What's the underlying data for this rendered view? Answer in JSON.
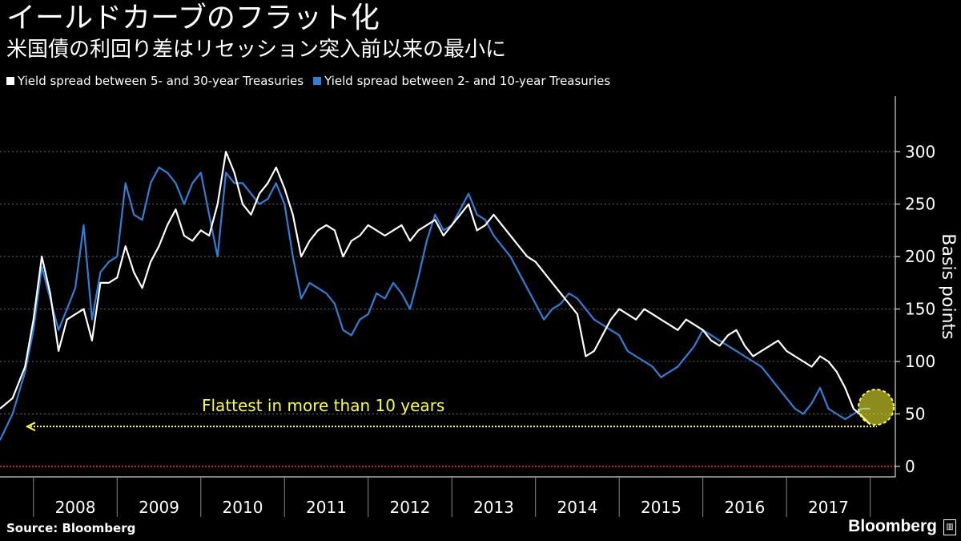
{
  "header": {
    "title": "イールドカーブのフラット化",
    "subtitle": "米国債の利回り差はリセッション突入前以来の最小に"
  },
  "legend": [
    {
      "label": "Yield spread between 5- and 30-year Treasuries",
      "color": "#ffffff"
    },
    {
      "label": "Yield spread between 2- and 10-year Treasuries",
      "color": "#2f7fd8"
    }
  ],
  "footer": {
    "source": "Source:  Bloomberg",
    "brand": "Bloomberg"
  },
  "colors": {
    "background": "#000000",
    "series_white": "#ffffff",
    "series_blue": "#2f7fd8",
    "annotation": "#ffff33",
    "zero_line": "#cc2222",
    "grid": "#666666"
  },
  "chart_data": {
    "type": "line",
    "title": "イールドカーブのフラット化",
    "subtitle": "米国債の利回り差はリセッション突入前以来の最小に",
    "xlabel": "",
    "ylabel": "Basis points",
    "x_tick_labels": [
      "2008",
      "2009",
      "2010",
      "2011",
      "2012",
      "2013",
      "2014",
      "2015",
      "2016",
      "2017"
    ],
    "y_ticks": [
      0,
      50,
      100,
      150,
      200,
      250,
      300
    ],
    "xlim": [
      2007.6,
      2018.3
    ],
    "ylim": [
      -10,
      330
    ],
    "grid": "horizontal dotted",
    "legend_position": "top-left",
    "annotation": {
      "text": "Flattest in more than 10 years",
      "y": 38
    },
    "reference_line": {
      "y": 0
    },
    "series": [
      {
        "name": "Yield spread between 5- and 30-year Treasuries",
        "x": [
          2007.6,
          2007.75,
          2007.9,
          2008.0,
          2008.1,
          2008.2,
          2008.3,
          2008.4,
          2008.5,
          2008.6,
          2008.7,
          2008.8,
          2008.9,
          2009.0,
          2009.1,
          2009.2,
          2009.3,
          2009.4,
          2009.5,
          2009.6,
          2009.7,
          2009.8,
          2009.9,
          2010.0,
          2010.1,
          2010.2,
          2010.3,
          2010.4,
          2010.5,
          2010.6,
          2010.7,
          2010.8,
          2010.9,
          2011.0,
          2011.1,
          2011.2,
          2011.3,
          2011.4,
          2011.5,
          2011.6,
          2011.7,
          2011.8,
          2011.9,
          2012.0,
          2012.1,
          2012.2,
          2012.3,
          2012.4,
          2012.5,
          2012.6,
          2012.7,
          2012.8,
          2012.9,
          2013.0,
          2013.1,
          2013.2,
          2013.3,
          2013.4,
          2013.5,
          2013.6,
          2013.7,
          2013.8,
          2013.9,
          2014.0,
          2014.1,
          2014.2,
          2014.3,
          2014.4,
          2014.5,
          2014.6,
          2014.7,
          2014.8,
          2014.9,
          2015.0,
          2015.1,
          2015.2,
          2015.3,
          2015.4,
          2015.5,
          2015.6,
          2015.7,
          2015.8,
          2015.9,
          2016.0,
          2016.1,
          2016.2,
          2016.3,
          2016.4,
          2016.5,
          2016.6,
          2016.7,
          2016.8,
          2016.9,
          2017.0,
          2017.1,
          2017.2,
          2017.3,
          2017.4,
          2017.5,
          2017.6,
          2017.7,
          2017.8,
          2017.9,
          2018.0
        ],
        "values": [
          55,
          65,
          95,
          140,
          200,
          165,
          110,
          140,
          145,
          150,
          120,
          175,
          175,
          180,
          210,
          185,
          170,
          195,
          210,
          230,
          245,
          220,
          215,
          225,
          220,
          250,
          300,
          280,
          250,
          240,
          260,
          270,
          285,
          265,
          240,
          200,
          215,
          225,
          230,
          225,
          200,
          215,
          220,
          230,
          225,
          220,
          225,
          230,
          215,
          225,
          230,
          235,
          220,
          230,
          240,
          250,
          225,
          230,
          240,
          230,
          220,
          210,
          200,
          195,
          185,
          175,
          165,
          155,
          145,
          105,
          110,
          125,
          140,
          150,
          145,
          140,
          150,
          145,
          140,
          135,
          130,
          140,
          135,
          130,
          120,
          115,
          125,
          130,
          115,
          105,
          110,
          115,
          120,
          110,
          105,
          100,
          95,
          105,
          100,
          90,
          75,
          55,
          48,
          40
        ]
      },
      {
        "name": "Yield spread between 2- and 10-year Treasuries",
        "x": [
          2007.6,
          2007.75,
          2007.9,
          2008.0,
          2008.1,
          2008.2,
          2008.3,
          2008.4,
          2008.5,
          2008.6,
          2008.7,
          2008.8,
          2008.9,
          2009.0,
          2009.1,
          2009.2,
          2009.3,
          2009.4,
          2009.5,
          2009.6,
          2009.7,
          2009.8,
          2009.9,
          2010.0,
          2010.1,
          2010.2,
          2010.3,
          2010.4,
          2010.5,
          2010.6,
          2010.7,
          2010.8,
          2010.9,
          2011.0,
          2011.1,
          2011.2,
          2011.3,
          2011.4,
          2011.5,
          2011.6,
          2011.7,
          2011.8,
          2011.9,
          2012.0,
          2012.1,
          2012.2,
          2012.3,
          2012.4,
          2012.5,
          2012.6,
          2012.7,
          2012.8,
          2012.9,
          2013.0,
          2013.1,
          2013.2,
          2013.3,
          2013.4,
          2013.5,
          2013.6,
          2013.7,
          2013.8,
          2013.9,
          2014.0,
          2014.1,
          2014.2,
          2014.3,
          2014.4,
          2014.5,
          2014.6,
          2014.7,
          2014.8,
          2014.9,
          2015.0,
          2015.1,
          2015.2,
          2015.3,
          2015.4,
          2015.5,
          2015.6,
          2015.7,
          2015.8,
          2015.9,
          2016.0,
          2016.1,
          2016.2,
          2016.3,
          2016.4,
          2016.5,
          2016.6,
          2016.7,
          2016.8,
          2016.9,
          2017.0,
          2017.1,
          2017.2,
          2017.3,
          2017.4,
          2017.5,
          2017.6,
          2017.7,
          2017.8,
          2017.9,
          2018.0
        ],
        "values": [
          25,
          50,
          90,
          130,
          190,
          160,
          130,
          150,
          170,
          230,
          140,
          185,
          195,
          200,
          270,
          240,
          235,
          270,
          285,
          280,
          270,
          250,
          270,
          280,
          240,
          200,
          280,
          270,
          270,
          260,
          250,
          255,
          270,
          250,
          200,
          160,
          175,
          170,
          165,
          155,
          130,
          125,
          140,
          145,
          165,
          160,
          175,
          165,
          150,
          180,
          215,
          240,
          225,
          230,
          245,
          260,
          240,
          235,
          220,
          210,
          200,
          185,
          170,
          155,
          140,
          150,
          155,
          165,
          160,
          150,
          140,
          135,
          130,
          125,
          110,
          105,
          100,
          95,
          85,
          90,
          95,
          105,
          115,
          130,
          125,
          120,
          115,
          110,
          105,
          100,
          95,
          85,
          75,
          65,
          55,
          50,
          60,
          75,
          55,
          50,
          45,
          50,
          55,
          55
        ]
      }
    ]
  }
}
